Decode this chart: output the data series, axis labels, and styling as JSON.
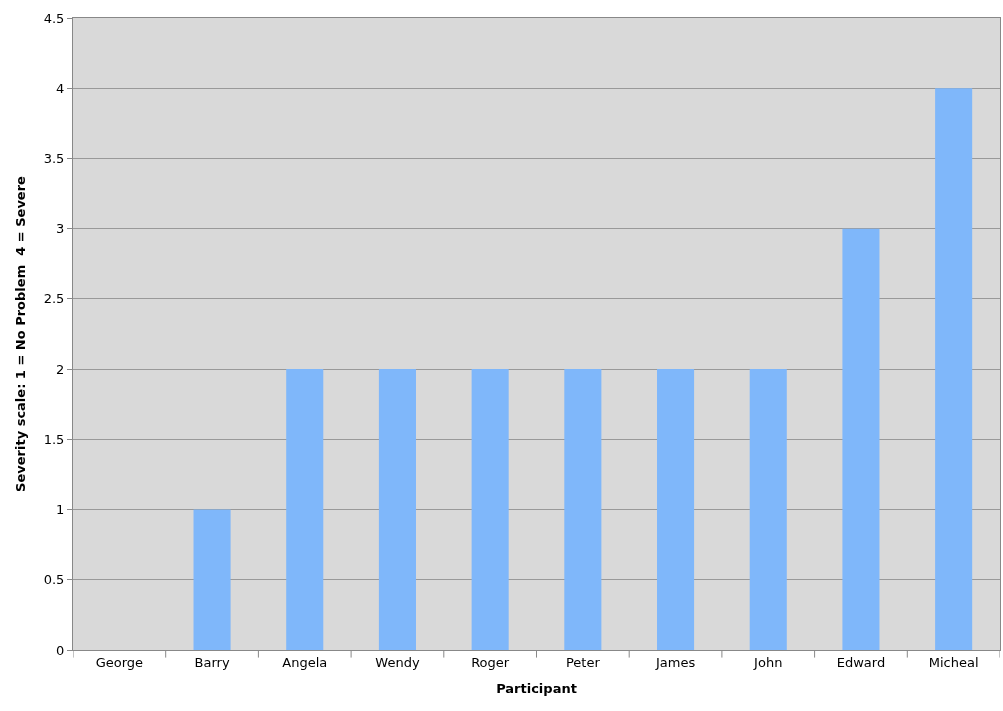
{
  "chart_data": {
    "type": "bar",
    "xlabel": "Participant",
    "ylabel": "Severity scale: 1 = No Problem  4 = Severe",
    "categories": [
      "George",
      "Barry",
      "Angela",
      "Wendy",
      "Roger",
      "Peter",
      "James",
      "John",
      "Edward",
      "Micheal"
    ],
    "values": [
      0,
      1,
      2,
      2,
      2,
      2,
      2,
      2,
      3,
      4
    ],
    "color": "#7fb7fa",
    "ylim": [
      0,
      4.5
    ],
    "yticks": [
      0,
      0.5,
      1,
      1.5,
      2,
      2.5,
      3,
      3.5,
      4,
      4.5
    ],
    "grid": "y"
  }
}
